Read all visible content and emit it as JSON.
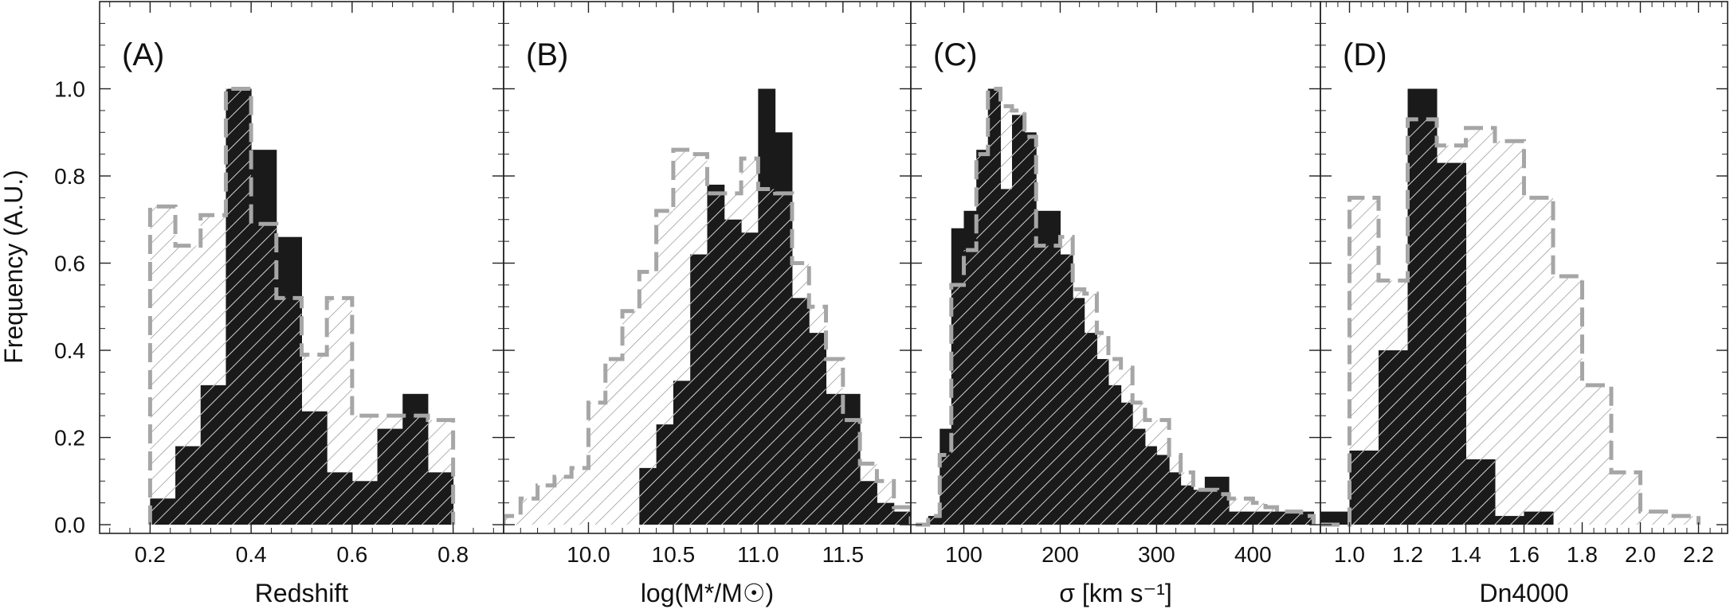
{
  "chart_data": {
    "type": "histogram",
    "ylabel": "Frequency (A.U.)",
    "ylim": [
      -0.02,
      1.2
    ],
    "yticks": [
      "0.0",
      "0.2",
      "0.4",
      "0.6",
      "0.8",
      "1.0"
    ],
    "series_styles": [
      {
        "name": "filled",
        "fill": "#1a1a1a",
        "hatch": "#ffffff"
      },
      {
        "name": "comparison",
        "stroke": "#a6a6a6",
        "hatch": "#808080",
        "dashed": true
      }
    ],
    "panels": [
      {
        "label": "(A)",
        "xlabel": "Redshift",
        "xlim": [
          0.1,
          0.9
        ],
        "xticks": [
          "0.2",
          "0.4",
          "0.6",
          "0.8"
        ],
        "bins": [
          0.2,
          0.25,
          0.3,
          0.35,
          0.4,
          0.45,
          0.5,
          0.55,
          0.6,
          0.65,
          0.7,
          0.75,
          0.8
        ],
        "filled": [
          0.06,
          0.18,
          0.32,
          1.0,
          0.86,
          0.66,
          0.26,
          0.12,
          0.1,
          0.22,
          0.3,
          0.12
        ],
        "comparison": [
          0.73,
          0.64,
          0.71,
          1.0,
          0.69,
          0.52,
          0.39,
          0.52,
          0.25,
          0.25,
          0.25,
          0.24
        ]
      },
      {
        "label": "(B)",
        "xlabel": "log(M*/M☉)",
        "xlim": [
          9.5,
          11.9
        ],
        "xticks": [
          "10.0",
          "10.5",
          "11.0",
          "11.5"
        ],
        "bins": [
          9.5,
          9.6,
          9.7,
          9.8,
          9.9,
          10.0,
          10.1,
          10.2,
          10.3,
          10.4,
          10.5,
          10.6,
          10.7,
          10.8,
          10.9,
          11.0,
          11.1,
          11.2,
          11.3,
          11.4,
          11.5,
          11.6,
          11.7,
          11.8,
          11.9
        ],
        "filled": [
          0,
          0,
          0,
          0,
          0,
          0,
          0,
          0,
          0.13,
          0.23,
          0.33,
          0.62,
          0.78,
          0.7,
          0.67,
          1.0,
          0.9,
          0.52,
          0.44,
          0.3,
          0.3,
          0.1,
          0.05,
          0.03
        ],
        "comparison": [
          0.02,
          0.06,
          0.09,
          0.11,
          0.13,
          0.28,
          0.38,
          0.49,
          0.58,
          0.72,
          0.86,
          0.85,
          0.76,
          0.76,
          0.84,
          0.77,
          0.76,
          0.6,
          0.5,
          0.38,
          0.24,
          0.14,
          0.1,
          0.04
        ]
      },
      {
        "label": "(C)",
        "xlabel": "σ [km s⁻¹]",
        "xlim": [
          45,
          470
        ],
        "xticks": [
          "100",
          "200",
          "300",
          "400"
        ],
        "bins": [
          50,
          63,
          75,
          87,
          100,
          113,
          125,
          138,
          150,
          163,
          175,
          188,
          200,
          213,
          225,
          238,
          250,
          263,
          275,
          288,
          300,
          313,
          325,
          338,
          350,
          363,
          375,
          388,
          400,
          413,
          425,
          438,
          450,
          463
        ],
        "filled": [
          0,
          0.02,
          0.22,
          0.68,
          0.72,
          0.86,
          1.0,
          0.77,
          0.94,
          0.9,
          0.72,
          0.72,
          0.62,
          0.52,
          0.44,
          0.38,
          0.32,
          0.28,
          0.22,
          0.18,
          0.16,
          0.12,
          0.09,
          0.08,
          0.11,
          0.11,
          0.03,
          0.03,
          0.03,
          0.03,
          0.03,
          0.03,
          0.03
        ],
        "comparison": [
          0,
          0.02,
          0.16,
          0.55,
          0.63,
          0.85,
          1.0,
          0.96,
          0.95,
          0.89,
          0.64,
          0.64,
          0.66,
          0.54,
          0.53,
          0.44,
          0.38,
          0.36,
          0.28,
          0.24,
          0.24,
          0.16,
          0.12,
          0.08,
          0.08,
          0.07,
          0.06,
          0.06,
          0.05,
          0.04,
          0.03,
          0.03,
          0.02
        ]
      },
      {
        "label": "(D)",
        "xlabel": "Dn4000",
        "xlim": [
          0.9,
          2.3
        ],
        "xticks": [
          "1.0",
          "1.2",
          "1.4",
          "1.6",
          "1.8",
          "2.0",
          "2.2"
        ],
        "bins": [
          0.9,
          1.0,
          1.1,
          1.2,
          1.3,
          1.4,
          1.5,
          1.6,
          1.7,
          1.8,
          1.9,
          2.0,
          2.1,
          2.2
        ],
        "filled": [
          0.03,
          0.17,
          0.4,
          1.0,
          0.83,
          0.15,
          0.02,
          0.03,
          0,
          0,
          0,
          0,
          0
        ],
        "comparison": [
          0.0,
          0.75,
          0.56,
          0.93,
          0.87,
          0.91,
          0.88,
          0.75,
          0.57,
          0.32,
          0.12,
          0.03,
          0.02
        ]
      }
    ]
  }
}
